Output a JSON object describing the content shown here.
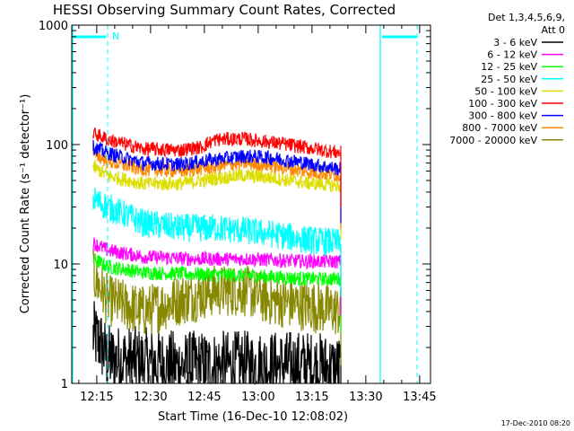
{
  "chart_data": {
    "type": "line",
    "title": "HESSI Observing Summary Count Rates, Corrected",
    "xlabel": "Start Time (16-Dec-10 12:08:02)",
    "ylabel": "Corrected Count Rate (s⁻¹ detector⁻¹)",
    "y_scale": "log",
    "ylim": [
      1,
      1000
    ],
    "y_ticks": [
      1,
      10,
      100,
      1000
    ],
    "y_tick_labels": [
      "1",
      "10",
      "100",
      "1000"
    ],
    "xlim_minutes": [
      0,
      100
    ],
    "x_ticks": [
      {
        "label": "12:15",
        "minutes": 6.97
      },
      {
        "label": "12:30",
        "minutes": 21.97
      },
      {
        "label": "12:45",
        "minutes": 36.97
      },
      {
        "label": "13:00",
        "minutes": 51.97
      },
      {
        "label": "13:15",
        "minutes": 66.97
      },
      {
        "label": "13:30",
        "minutes": 81.97
      },
      {
        "label": "13:45",
        "minutes": 96.97
      }
    ],
    "grid": false,
    "legend_position": "outside-right",
    "legend_header": [
      "Det 1,3,4,5,6,9,",
      "Att 0"
    ],
    "annotations": [
      {
        "text": "N",
        "color": "#00ffff"
      }
    ],
    "timestamp": "17-Dec-2010 08:20",
    "series": [
      {
        "name": "3 - 6 keV",
        "color": "#000000",
        "points": [
          [
            6,
            2.5
          ],
          [
            8,
            2.2
          ],
          [
            10,
            1.6
          ],
          [
            30,
            1.4
          ],
          [
            50,
            1.4
          ],
          [
            65,
            1.4
          ],
          [
            75,
            1.3
          ]
        ]
      },
      {
        "name": "6 - 12 keV",
        "color": "#ff00ff",
        "points": [
          [
            6,
            15
          ],
          [
            10,
            13
          ],
          [
            20,
            11.5
          ],
          [
            35,
            11
          ],
          [
            50,
            11
          ],
          [
            65,
            10.5
          ],
          [
            75,
            10.5
          ]
        ]
      },
      {
        "name": "12 - 25 keV",
        "color": "#00ff00",
        "points": [
          [
            6,
            11
          ],
          [
            10,
            9.5
          ],
          [
            20,
            8.5
          ],
          [
            35,
            8.2
          ],
          [
            50,
            8
          ],
          [
            65,
            7.5
          ],
          [
            75,
            7.5
          ]
        ]
      },
      {
        "name": "25 - 50 keV",
        "color": "#00ffff",
        "points": [
          [
            6,
            35
          ],
          [
            10,
            30
          ],
          [
            20,
            22
          ],
          [
            30,
            20
          ],
          [
            40,
            20
          ],
          [
            48,
            19
          ],
          [
            55,
            18
          ],
          [
            65,
            16
          ],
          [
            75,
            15
          ]
        ]
      },
      {
        "name": "50 - 100 keV",
        "color": "#dddd00",
        "points": [
          [
            6,
            65
          ],
          [
            10,
            55
          ],
          [
            20,
            47
          ],
          [
            30,
            47
          ],
          [
            40,
            52
          ],
          [
            48,
            55
          ],
          [
            55,
            53
          ],
          [
            65,
            48
          ],
          [
            75,
            45
          ]
        ]
      },
      {
        "name": "100 - 300 keV",
        "color": "#ff0000",
        "points": [
          [
            6,
            125
          ],
          [
            10,
            110
          ],
          [
            20,
            92
          ],
          [
            30,
            90
          ],
          [
            36,
            95
          ],
          [
            40,
            110
          ],
          [
            48,
            112
          ],
          [
            55,
            105
          ],
          [
            65,
            95
          ],
          [
            75,
            85
          ]
        ]
      },
      {
        "name": "300 - 800 keV",
        "color": "#0000ff",
        "points": [
          [
            6,
            95
          ],
          [
            10,
            85
          ],
          [
            20,
            70
          ],
          [
            30,
            68
          ],
          [
            40,
            75
          ],
          [
            48,
            80
          ],
          [
            55,
            78
          ],
          [
            65,
            70
          ],
          [
            75,
            62
          ]
        ]
      },
      {
        "name": "800 - 7000 keV",
        "color": "#ff8800",
        "points": [
          [
            6,
            85
          ],
          [
            10,
            72
          ],
          [
            20,
            62
          ],
          [
            30,
            60
          ],
          [
            40,
            65
          ],
          [
            48,
            70
          ],
          [
            55,
            67
          ],
          [
            65,
            60
          ],
          [
            75,
            55
          ]
        ]
      },
      {
        "name": "7000 - 20000 keV",
        "color": "#888800",
        "points": [
          [
            6,
            8
          ],
          [
            10,
            5
          ],
          [
            20,
            4
          ],
          [
            30,
            5
          ],
          [
            40,
            6
          ],
          [
            48,
            6
          ],
          [
            55,
            5
          ],
          [
            65,
            4.5
          ],
          [
            75,
            4
          ]
        ]
      }
    ]
  }
}
